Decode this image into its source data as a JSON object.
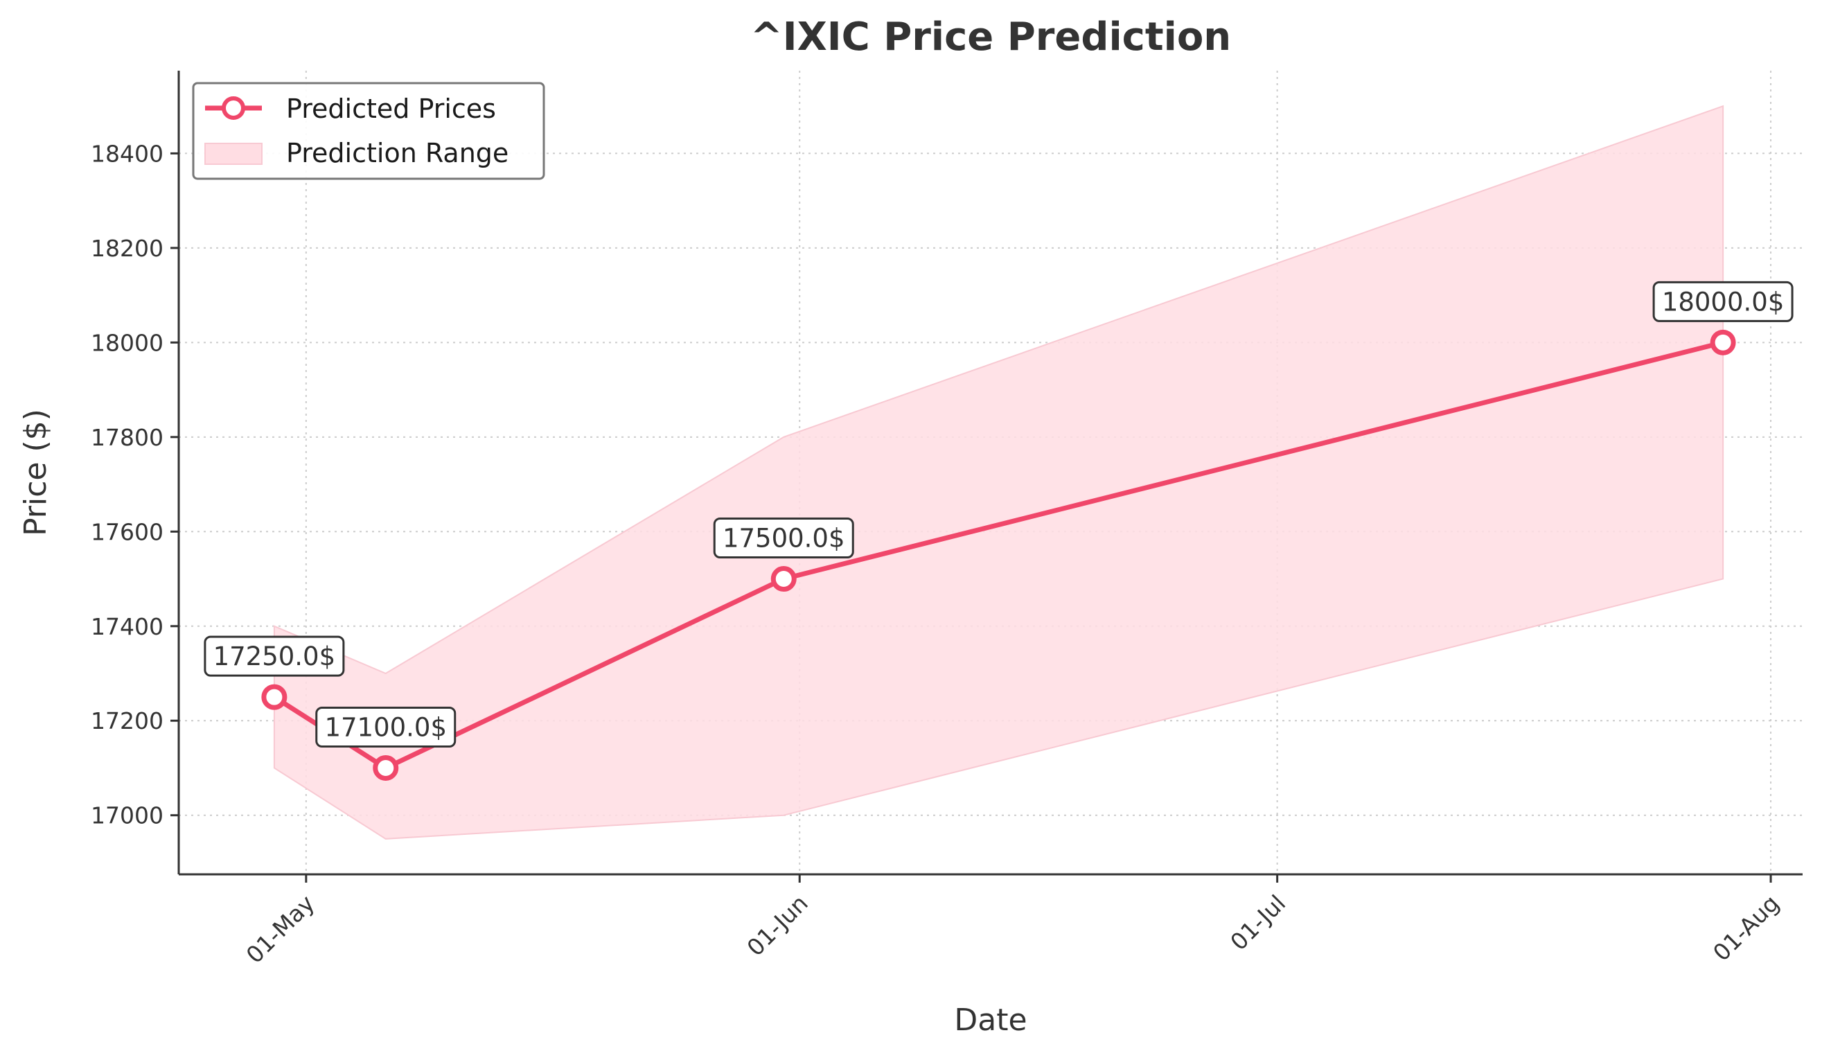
{
  "chart_data": {
    "type": "line",
    "title": "^IXIC Price Prediction",
    "xlabel": "Date",
    "ylabel": "Price ($)",
    "x": [
      "2024-04-29",
      "2024-05-06",
      "2024-05-31",
      "2024-07-29"
    ],
    "series": [
      {
        "name": "Predicted Prices",
        "values": [
          17250,
          17100,
          17500,
          18000
        ],
        "color": "#f0476a"
      }
    ],
    "range": {
      "name": "Prediction Range",
      "lower": [
        17100,
        16950,
        17000,
        17500
      ],
      "upper": [
        17400,
        17300,
        17800,
        18500
      ],
      "color": "#ffdde3"
    },
    "annotations": [
      "17250.0$",
      "17100.0$",
      "17500.0$",
      "18000.0$"
    ],
    "x_ticks": [
      {
        "date": "2024-05-01",
        "label": "01-May"
      },
      {
        "date": "2024-06-01",
        "label": "01-Jun"
      },
      {
        "date": "2024-07-01",
        "label": "01-Jul"
      },
      {
        "date": "2024-08-01",
        "label": "01-Aug"
      }
    ],
    "y_ticks": [
      17000,
      17200,
      17400,
      17600,
      17800,
      18000,
      18200,
      18400
    ],
    "xlim": [
      "2024-04-23",
      "2024-08-03"
    ],
    "ylim": [
      16875,
      18575
    ],
    "grid": true,
    "legend_position": "top-left"
  }
}
